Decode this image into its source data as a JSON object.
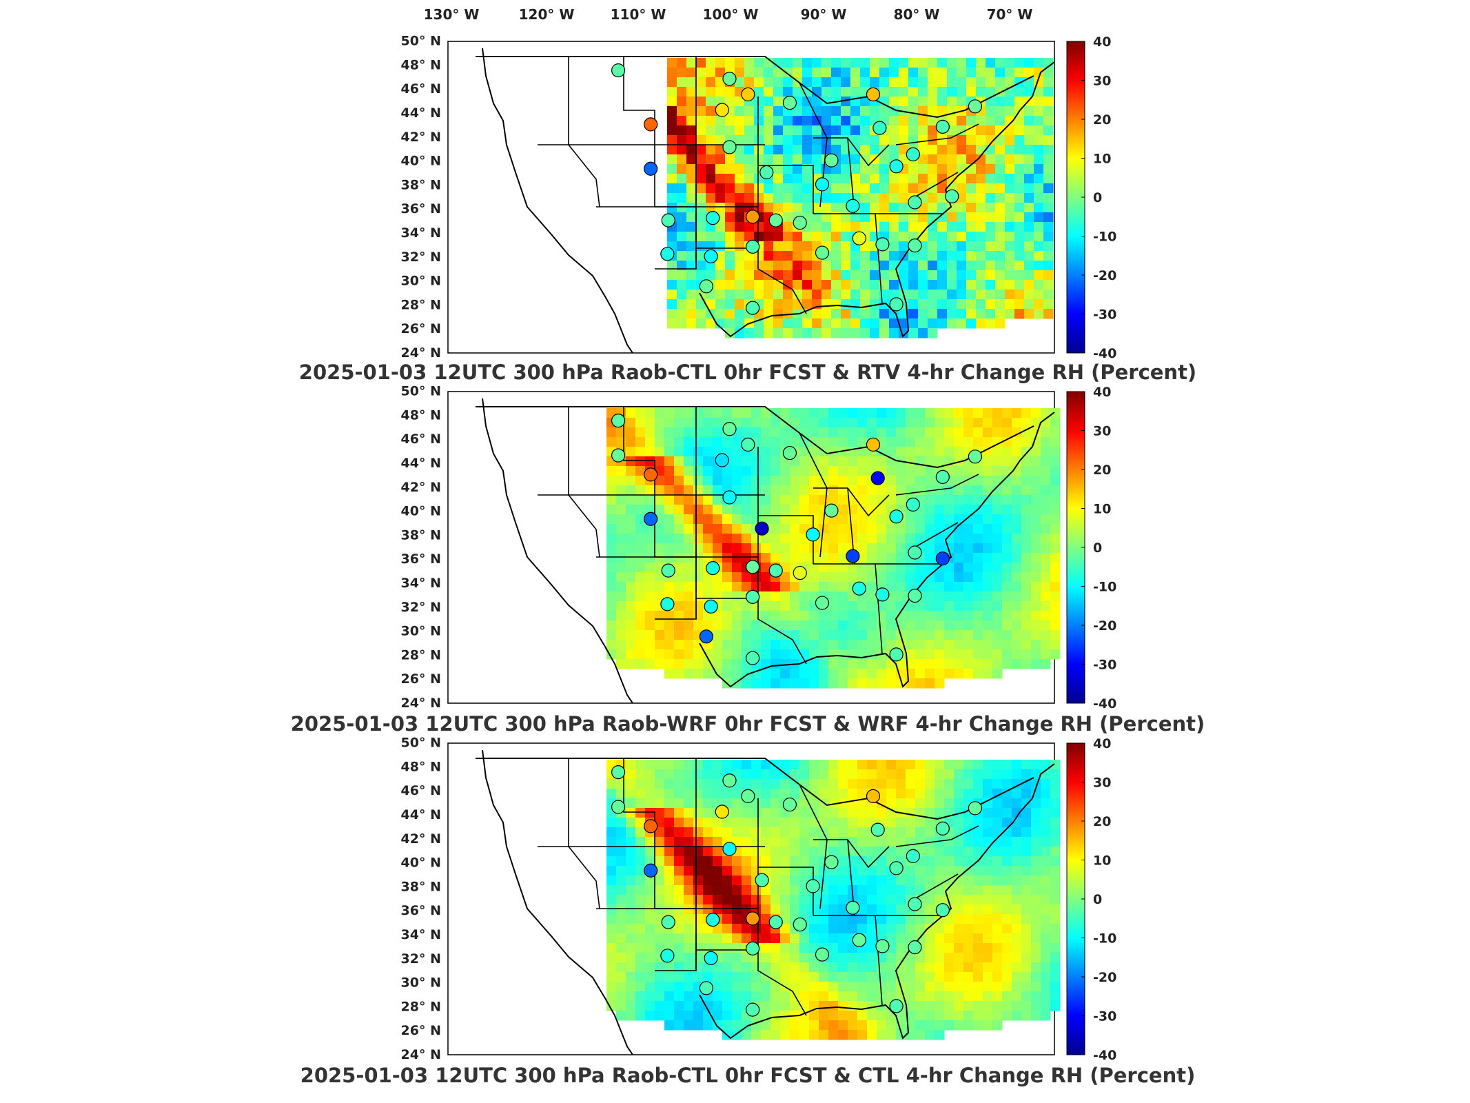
{
  "figure": {
    "lon_labels": [
      "130° W",
      "120° W",
      "110° W",
      "100° W",
      "90° W",
      "80° W",
      "70° W"
    ],
    "lon_values": [
      -130,
      -120,
      -110,
      -100,
      -90,
      -80,
      -70
    ],
    "lat_labels": [
      "50° N",
      "48° N",
      "46° N",
      "44° N",
      "42° N",
      "40° N",
      "38° N",
      "36° N",
      "34° N",
      "32° N",
      "30° N",
      "28° N",
      "26° N",
      "24° N"
    ],
    "lat_values": [
      50,
      48,
      46,
      44,
      42,
      40,
      38,
      36,
      34,
      32,
      30,
      28,
      26,
      24
    ],
    "colorbar": {
      "ticks": [
        "40",
        "30",
        "20",
        "10",
        "0",
        "-10",
        "-20",
        "-30",
        "-40"
      ],
      "range": [
        -40,
        40
      ],
      "colormap": "jet",
      "units": "Percent"
    },
    "colors": {
      "coast": "#000000",
      "frame": "#000000",
      "dark_blue": "#00008f",
      "blue": "#0050ff",
      "cyan": "#00e0ff",
      "green": "#5cf0a0",
      "yellow": "#ffe000",
      "orange": "#ff8000",
      "red": "#e00000",
      "dark_red": "#800000"
    }
  },
  "panels": [
    {
      "title": "2025-01-03 12UTC 300 hPa Raob-CTL 0hr FCST & RTV 4-hr Change RH (Percent)",
      "field_background": "noisy-retrieval",
      "raob_stations": [
        {
          "lon": -112.0,
          "lat": 47.5,
          "value": -3
        },
        {
          "lon": -108.5,
          "lat": 43.0,
          "value": 22
        },
        {
          "lon": -108.5,
          "lat": 39.3,
          "value": -22
        },
        {
          "lon": -106.6,
          "lat": 35.0,
          "value": -4
        },
        {
          "lon": -106.7,
          "lat": 32.2,
          "value": -8
        },
        {
          "lon": -102.0,
          "lat": 32.0,
          "value": -10
        },
        {
          "lon": -101.8,
          "lat": 35.2,
          "value": -8
        },
        {
          "lon": -100.8,
          "lat": 44.2,
          "value": 12
        },
        {
          "lon": -100.0,
          "lat": 46.8,
          "value": -2
        },
        {
          "lon": -98.0,
          "lat": 45.5,
          "value": 14
        },
        {
          "lon": -100.0,
          "lat": 41.1,
          "value": -2
        },
        {
          "lon": -97.5,
          "lat": 35.3,
          "value": 18
        },
        {
          "lon": -97.5,
          "lat": 32.8,
          "value": -4
        },
        {
          "lon": -96.0,
          "lat": 39.0,
          "value": -4
        },
        {
          "lon": -93.5,
          "lat": 44.8,
          "value": -2
        },
        {
          "lon": -95.0,
          "lat": 35.0,
          "value": -2
        },
        {
          "lon": -92.4,
          "lat": 34.8,
          "value": -2
        },
        {
          "lon": -90.0,
          "lat": 32.3,
          "value": -2
        },
        {
          "lon": -90.0,
          "lat": 38.0,
          "value": -10
        },
        {
          "lon": -89.0,
          "lat": 40.0,
          "value": -2
        },
        {
          "lon": -86.7,
          "lat": 36.2,
          "value": -8
        },
        {
          "lon": -86.0,
          "lat": 33.5,
          "value": 8
        },
        {
          "lon": -83.5,
          "lat": 33.0,
          "value": -4
        },
        {
          "lon": -84.5,
          "lat": 45.5,
          "value": 15
        },
        {
          "lon": -83.8,
          "lat": 42.7,
          "value": -6
        },
        {
          "lon": -82.0,
          "lat": 39.5,
          "value": -8
        },
        {
          "lon": -80.2,
          "lat": 40.5,
          "value": -6
        },
        {
          "lon": -80.0,
          "lat": 36.5,
          "value": -4
        },
        {
          "lon": -80.0,
          "lat": 32.9,
          "value": -3
        },
        {
          "lon": -76.0,
          "lat": 37.0,
          "value": -4
        },
        {
          "lon": -77.0,
          "lat": 42.8,
          "value": -4
        },
        {
          "lon": -73.5,
          "lat": 44.5,
          "value": -2
        },
        {
          "lon": -82.0,
          "lat": 28.0,
          "value": -4
        },
        {
          "lon": -97.5,
          "lat": 27.7,
          "value": -4
        },
        {
          "lon": -102.5,
          "lat": 29.5,
          "value": -2
        }
      ]
    },
    {
      "title": "2025-01-03 12UTC 300 hPa Raob-WRF 0hr FCST & WRF 4-hr Change RH (Percent)",
      "field_background": "smooth-model",
      "raob_stations": [
        {
          "lon": -112.0,
          "lat": 47.5,
          "value": -3
        },
        {
          "lon": -108.5,
          "lat": 43.0,
          "value": 22
        },
        {
          "lon": -108.5,
          "lat": 39.3,
          "value": -22
        },
        {
          "lon": -106.6,
          "lat": 35.0,
          "value": -4
        },
        {
          "lon": -106.7,
          "lat": 32.2,
          "value": -8
        },
        {
          "lon": -102.0,
          "lat": 32.0,
          "value": -10
        },
        {
          "lon": -101.8,
          "lat": 35.2,
          "value": -8
        },
        {
          "lon": -100.8,
          "lat": 44.2,
          "value": -12
        },
        {
          "lon": -100.0,
          "lat": 46.8,
          "value": -2
        },
        {
          "lon": -98.0,
          "lat": 45.5,
          "value": -4
        },
        {
          "lon": -100.0,
          "lat": 41.1,
          "value": -10
        },
        {
          "lon": -97.5,
          "lat": 35.3,
          "value": -2
        },
        {
          "lon": -97.5,
          "lat": 32.8,
          "value": -4
        },
        {
          "lon": -96.5,
          "lat": 38.5,
          "value": -35
        },
        {
          "lon": -93.5,
          "lat": 44.8,
          "value": -2
        },
        {
          "lon": -95.0,
          "lat": 35.0,
          "value": -4
        },
        {
          "lon": -92.4,
          "lat": 34.8,
          "value": 8
        },
        {
          "lon": -90.0,
          "lat": 32.3,
          "value": -2
        },
        {
          "lon": -91.0,
          "lat": 38.0,
          "value": -10
        },
        {
          "lon": -89.0,
          "lat": 40.0,
          "value": -2
        },
        {
          "lon": -86.7,
          "lat": 36.2,
          "value": -25
        },
        {
          "lon": -86.0,
          "lat": 33.5,
          "value": -8
        },
        {
          "lon": -83.5,
          "lat": 33.0,
          "value": -8
        },
        {
          "lon": -84.5,
          "lat": 45.5,
          "value": 15
        },
        {
          "lon": -84.0,
          "lat": 42.7,
          "value": -30
        },
        {
          "lon": -82.0,
          "lat": 39.5,
          "value": -8
        },
        {
          "lon": -80.2,
          "lat": 40.5,
          "value": -6
        },
        {
          "lon": -80.0,
          "lat": 36.5,
          "value": -4
        },
        {
          "lon": -80.0,
          "lat": 32.9,
          "value": -3
        },
        {
          "lon": -77.0,
          "lat": 36.0,
          "value": -25
        },
        {
          "lon": -77.0,
          "lat": 42.8,
          "value": -4
        },
        {
          "lon": -73.5,
          "lat": 44.5,
          "value": -2
        },
        {
          "lon": -82.0,
          "lat": 28.0,
          "value": -4
        },
        {
          "lon": -97.5,
          "lat": 27.7,
          "value": -4
        },
        {
          "lon": -102.5,
          "lat": 29.5,
          "value": -22
        },
        {
          "lon": -112.0,
          "lat": 44.6,
          "value": -2
        }
      ]
    },
    {
      "title": "2025-01-03 12UTC 300 hPa Raob-CTL 0hr FCST & CTL 4-hr Change RH (Percent)",
      "field_background": "smooth-model",
      "raob_stations": [
        {
          "lon": -112.0,
          "lat": 47.5,
          "value": -3
        },
        {
          "lon": -108.5,
          "lat": 43.0,
          "value": 22
        },
        {
          "lon": -108.5,
          "lat": 39.3,
          "value": -22
        },
        {
          "lon": -106.6,
          "lat": 35.0,
          "value": -4
        },
        {
          "lon": -106.7,
          "lat": 32.2,
          "value": -8
        },
        {
          "lon": -102.0,
          "lat": 32.0,
          "value": -10
        },
        {
          "lon": -101.8,
          "lat": 35.2,
          "value": -8
        },
        {
          "lon": -100.8,
          "lat": 44.2,
          "value": 12
        },
        {
          "lon": -100.0,
          "lat": 46.8,
          "value": -2
        },
        {
          "lon": -98.0,
          "lat": 45.5,
          "value": -2
        },
        {
          "lon": -100.0,
          "lat": 41.1,
          "value": -10
        },
        {
          "lon": -97.5,
          "lat": 35.3,
          "value": 18
        },
        {
          "lon": -97.5,
          "lat": 32.8,
          "value": -4
        },
        {
          "lon": -96.5,
          "lat": 38.5,
          "value": -4
        },
        {
          "lon": -93.5,
          "lat": 44.8,
          "value": -2
        },
        {
          "lon": -95.0,
          "lat": 35.0,
          "value": -4
        },
        {
          "lon": -92.4,
          "lat": 34.8,
          "value": -2
        },
        {
          "lon": -90.0,
          "lat": 32.3,
          "value": -2
        },
        {
          "lon": -91.0,
          "lat": 38.0,
          "value": -4
        },
        {
          "lon": -89.0,
          "lat": 40.0,
          "value": -2
        },
        {
          "lon": -86.7,
          "lat": 36.2,
          "value": -4
        },
        {
          "lon": -86.0,
          "lat": 33.5,
          "value": -2
        },
        {
          "lon": -83.5,
          "lat": 33.0,
          "value": -2
        },
        {
          "lon": -84.5,
          "lat": 45.5,
          "value": 15
        },
        {
          "lon": -84.0,
          "lat": 42.7,
          "value": -4
        },
        {
          "lon": -82.0,
          "lat": 39.5,
          "value": -4
        },
        {
          "lon": -80.2,
          "lat": 40.5,
          "value": -6
        },
        {
          "lon": -80.0,
          "lat": 36.5,
          "value": -4
        },
        {
          "lon": -80.0,
          "lat": 32.9,
          "value": -3
        },
        {
          "lon": -77.0,
          "lat": 36.0,
          "value": -4
        },
        {
          "lon": -77.0,
          "lat": 42.8,
          "value": -4
        },
        {
          "lon": -73.5,
          "lat": 44.5,
          "value": -2
        },
        {
          "lon": -82.0,
          "lat": 28.0,
          "value": -4
        },
        {
          "lon": -97.5,
          "lat": 27.7,
          "value": -4
        },
        {
          "lon": -102.5,
          "lat": 29.5,
          "value": -4
        },
        {
          "lon": -112.0,
          "lat": 44.6,
          "value": -2
        }
      ]
    }
  ]
}
